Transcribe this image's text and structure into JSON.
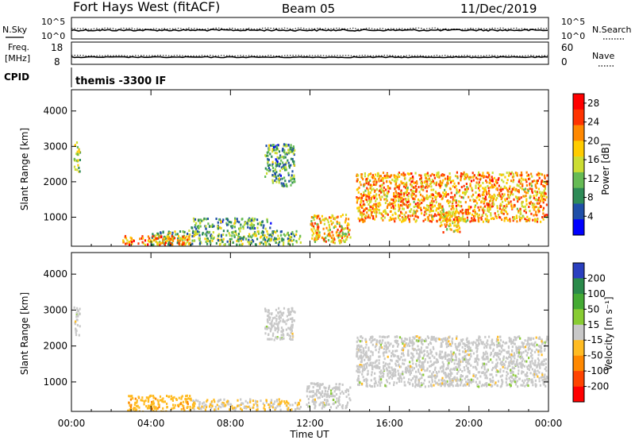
{
  "header": {
    "station": "Fort Hays West (fitACF)",
    "beam": "Beam 05",
    "date": "11/Dec/2019"
  },
  "strip_panels": {
    "nsky": {
      "label": "N.Sky",
      "right_label": "N.Search",
      "left_ticks": [
        "10^5",
        "10^0"
      ],
      "right_ticks": [
        "10^5",
        "10^0"
      ]
    },
    "freq": {
      "label_lines": [
        "Freq.",
        "[MHz]"
      ],
      "right_label": "Nave",
      "left_ticks": [
        "18",
        "8"
      ],
      "right_ticks": [
        "60",
        "0"
      ]
    },
    "cpid": {
      "label": "CPID",
      "text": "themis -3300 IF"
    }
  },
  "colors": {
    "power_scale": [
      "#0000ff",
      "#1f4fa8",
      "#2e8b57",
      "#66bb55",
      "#ccdd33",
      "#ffcc00",
      "#ff8800",
      "#ff3300",
      "#ff0000"
    ],
    "velocity_scale": [
      "#2a3fbf",
      "#2a8a4a",
      "#44aa33",
      "#88cc33",
      "#c8c8c8",
      "#ffbb22",
      "#ff8800",
      "#ff4400",
      "#ff0000"
    ]
  },
  "chart_data": [
    {
      "type": "heatmap",
      "title": "",
      "xlabel": "",
      "ylabel": "Slant Range [km]",
      "xlim": [
        "00:00",
        "24:00"
      ],
      "ylim": [
        180,
        4600
      ],
      "x_ticks": [
        "00:00",
        "04:00",
        "08:00",
        "12:00",
        "16:00",
        "20:00",
        "00:00"
      ],
      "y_ticks": [
        1000,
        2000,
        3000,
        4000
      ],
      "colorbar": {
        "label": "Power [dB]",
        "ticks": [
          4,
          8,
          12,
          16,
          20,
          24,
          28
        ],
        "range": [
          0,
          30
        ]
      },
      "regions": [
        {
          "t0": 4.0,
          "t1": 11.5,
          "r0": 250,
          "r1": 650,
          "level": 12
        },
        {
          "t0": 2.5,
          "t1": 6.0,
          "r0": 250,
          "r1": 500,
          "level": 22
        },
        {
          "t0": 6.0,
          "t1": 10.0,
          "r0": 700,
          "r1": 1000,
          "level": 10
        },
        {
          "t0": 9.7,
          "t1": 11.2,
          "r0": 1900,
          "r1": 3100,
          "level": 10
        },
        {
          "t0": 12.0,
          "t1": 14.0,
          "r0": 300,
          "r1": 1100,
          "level": 18
        },
        {
          "t0": 14.3,
          "t1": 23.9,
          "r0": 900,
          "r1": 2300,
          "level": 20
        },
        {
          "t0": 18.5,
          "t1": 19.5,
          "r0": 600,
          "r1": 1200,
          "level": 18
        },
        {
          "t0": 0.1,
          "t1": 0.4,
          "r0": 2300,
          "r1": 3150,
          "level": 14
        }
      ]
    },
    {
      "type": "heatmap",
      "title": "",
      "xlabel": "Time UT",
      "ylabel": "Slant Range [km]",
      "xlim": [
        "00:00",
        "24:00"
      ],
      "ylim": [
        180,
        4600
      ],
      "x_ticks": [
        "00:00",
        "04:00",
        "08:00",
        "12:00",
        "16:00",
        "20:00",
        "00:00"
      ],
      "y_ticks": [
        1000,
        2000,
        3000,
        4000
      ],
      "colorbar": {
        "label": "Velocity [m s⁻¹]",
        "ticks": [
          200,
          100,
          50,
          15,
          -15,
          -50,
          -100,
          -200
        ],
        "range": [
          -250,
          250
        ]
      },
      "regions": [
        {
          "t0": 2.8,
          "t1": 6.0,
          "r0": 200,
          "r1": 650,
          "level": -60
        },
        {
          "t0": 6.0,
          "t1": 11.5,
          "r0": 250,
          "r1": 550,
          "level": -30
        },
        {
          "t0": 9.7,
          "t1": 11.2,
          "r0": 2200,
          "r1": 3100,
          "level": 0
        },
        {
          "t0": 11.8,
          "t1": 14.0,
          "r0": 300,
          "r1": 1000,
          "level": 0
        },
        {
          "t0": 14.3,
          "t1": 23.9,
          "r0": 900,
          "r1": 2300,
          "level": 0
        },
        {
          "t0": 0.1,
          "t1": 0.4,
          "r0": 2300,
          "r1": 3150,
          "level": 0
        }
      ]
    }
  ]
}
